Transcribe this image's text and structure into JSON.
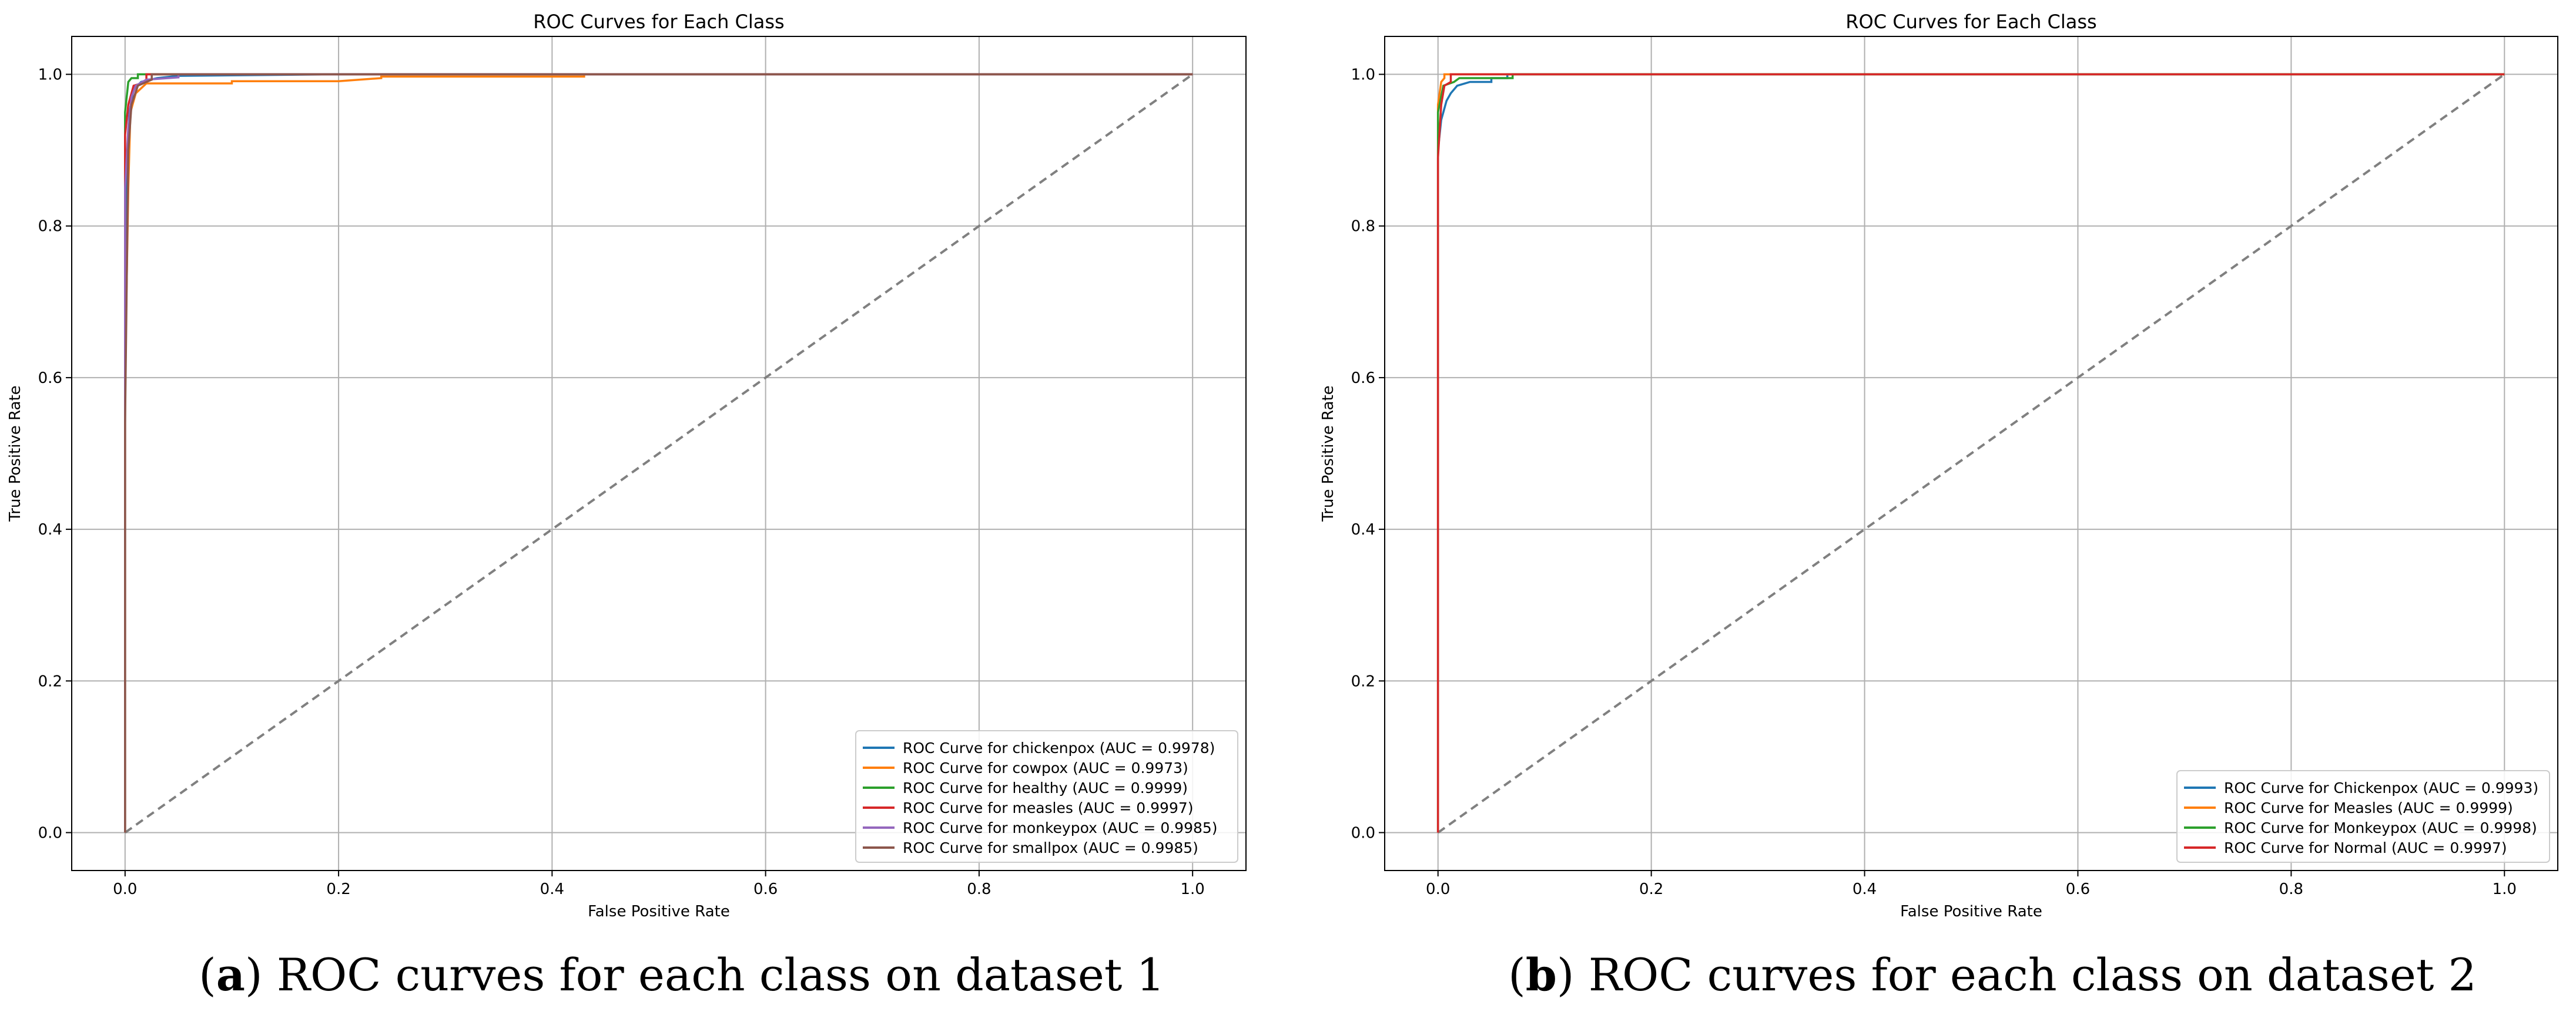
{
  "chart_data": [
    {
      "type": "line",
      "title": "ROC Curves for Each Class",
      "xlabel": "False Positive Rate",
      "ylabel": "True Positive Rate",
      "xlim": [
        -0.05,
        1.05
      ],
      "ylim": [
        -0.05,
        1.05
      ],
      "xticks": [
        "0.0",
        "0.2",
        "0.4",
        "0.6",
        "0.8",
        "1.0"
      ],
      "yticks": [
        "0.0",
        "0.2",
        "0.4",
        "0.6",
        "0.8",
        "1.0"
      ],
      "grid": true,
      "legend": "lower-right",
      "baseline": {
        "x": [
          0,
          1
        ],
        "y": [
          0,
          1
        ],
        "color": "#808080",
        "style": "dashed"
      },
      "series": [
        {
          "name": "ROC Curve for chickenpox (AUC = 0.9978)",
          "color": "#1f77b4",
          "x": [
            0,
            0,
            0.002,
            0.004,
            0.008,
            0.015,
            0.03,
            0.05,
            0.2,
            1
          ],
          "y": [
            0,
            0.6,
            0.9,
            0.95,
            0.98,
            0.99,
            0.995,
            0.998,
            1.0,
            1.0
          ]
        },
        {
          "name": "ROC Curve for cowpox (AUC = 0.9973)",
          "color": "#ff7f0e",
          "x": [
            0,
            0,
            0.003,
            0.005,
            0.01,
            0.02,
            0.1,
            0.1,
            0.2,
            0.24,
            0.24,
            0.43,
            0.43,
            1
          ],
          "y": [
            0,
            0.6,
            0.85,
            0.95,
            0.975,
            0.988,
            0.988,
            0.991,
            0.991,
            0.995,
            0.997,
            0.997,
            1.0,
            1.0
          ]
        },
        {
          "name": "ROC Curve for healthy (AUC = 0.9999)",
          "color": "#2ca02c",
          "x": [
            0,
            0,
            0.003,
            0.006,
            0.012,
            0.012,
            1
          ],
          "y": [
            0,
            0.95,
            0.99,
            0.995,
            0.995,
            1.0,
            1.0
          ]
        },
        {
          "name": "ROC Curve for measles (AUC = 0.9997)",
          "color": "#d62728",
          "x": [
            0,
            0,
            0.003,
            0.008,
            0.02,
            0.02,
            1
          ],
          "y": [
            0,
            0.92,
            0.96,
            0.985,
            0.99,
            1.0,
            1.0
          ]
        },
        {
          "name": "ROC Curve for monkeypox (AUC = 0.9985)",
          "color": "#9467bd",
          "x": [
            0,
            0,
            0.003,
            0.006,
            0.01,
            0.02,
            0.05,
            0.05,
            1
          ],
          "y": [
            0,
            0.85,
            0.93,
            0.97,
            0.985,
            0.993,
            0.996,
            1.0,
            1.0
          ]
        },
        {
          "name": "ROC Curve for smallpox (AUC = 0.9985)",
          "color": "#8c564b",
          "x": [
            0,
            0,
            0.003,
            0.006,
            0.012,
            0.025,
            0.025,
            1
          ],
          "y": [
            0,
            0.54,
            0.9,
            0.96,
            0.985,
            0.993,
            1.0,
            1.0
          ]
        }
      ]
    },
    {
      "type": "line",
      "title": "ROC Curves for Each Class",
      "xlabel": "False Positive Rate",
      "ylabel": "True Positive Rate",
      "xlim": [
        -0.05,
        1.05
      ],
      "ylim": [
        -0.05,
        1.05
      ],
      "xticks": [
        "0.0",
        "0.2",
        "0.4",
        "0.6",
        "0.8",
        "1.0"
      ],
      "yticks": [
        "0.0",
        "0.2",
        "0.4",
        "0.6",
        "0.8",
        "1.0"
      ],
      "grid": true,
      "legend": "lower-right",
      "baseline": {
        "x": [
          0,
          1
        ],
        "y": [
          0,
          1
        ],
        "color": "#808080",
        "style": "dashed"
      },
      "series": [
        {
          "name": "ROC Curve for Chickenpox (AUC = 0.9993)",
          "color": "#1f77b4",
          "x": [
            0,
            0,
            0.003,
            0.005,
            0.008,
            0.012,
            0.018,
            0.03,
            0.05,
            0.05,
            0.065,
            0.065,
            1
          ],
          "y": [
            0,
            0.9,
            0.94,
            0.95,
            0.965,
            0.975,
            0.985,
            0.99,
            0.99,
            0.995,
            0.995,
            1.0,
            1.0
          ]
        },
        {
          "name": "ROC Curve for Measles (AUC = 0.9999)",
          "color": "#ff7f0e",
          "x": [
            0,
            0,
            0.003,
            0.006,
            0.006,
            1
          ],
          "y": [
            0,
            0.96,
            0.99,
            0.995,
            1.0,
            1.0
          ]
        },
        {
          "name": "ROC Curve for Monkeypox (AUC = 0.9998)",
          "color": "#2ca02c",
          "x": [
            0,
            0,
            0.005,
            0.015,
            0.02,
            0.07,
            0.07,
            1
          ],
          "y": [
            0,
            0.95,
            0.985,
            0.99,
            0.995,
            0.995,
            1.0,
            1.0
          ]
        },
        {
          "name": "ROC Curve for Normal (AUC = 0.9997)",
          "color": "#d62728",
          "x": [
            0,
            0,
            0.003,
            0.006,
            0.012,
            0.012,
            1
          ],
          "y": [
            0,
            0.89,
            0.96,
            0.985,
            0.99,
            1.0,
            1.0
          ]
        }
      ]
    }
  ],
  "captions": [
    {
      "label": "a",
      "text": "ROC curves for each class on dataset 1"
    },
    {
      "label": "b",
      "text": "ROC curves for each class on dataset 2"
    }
  ]
}
